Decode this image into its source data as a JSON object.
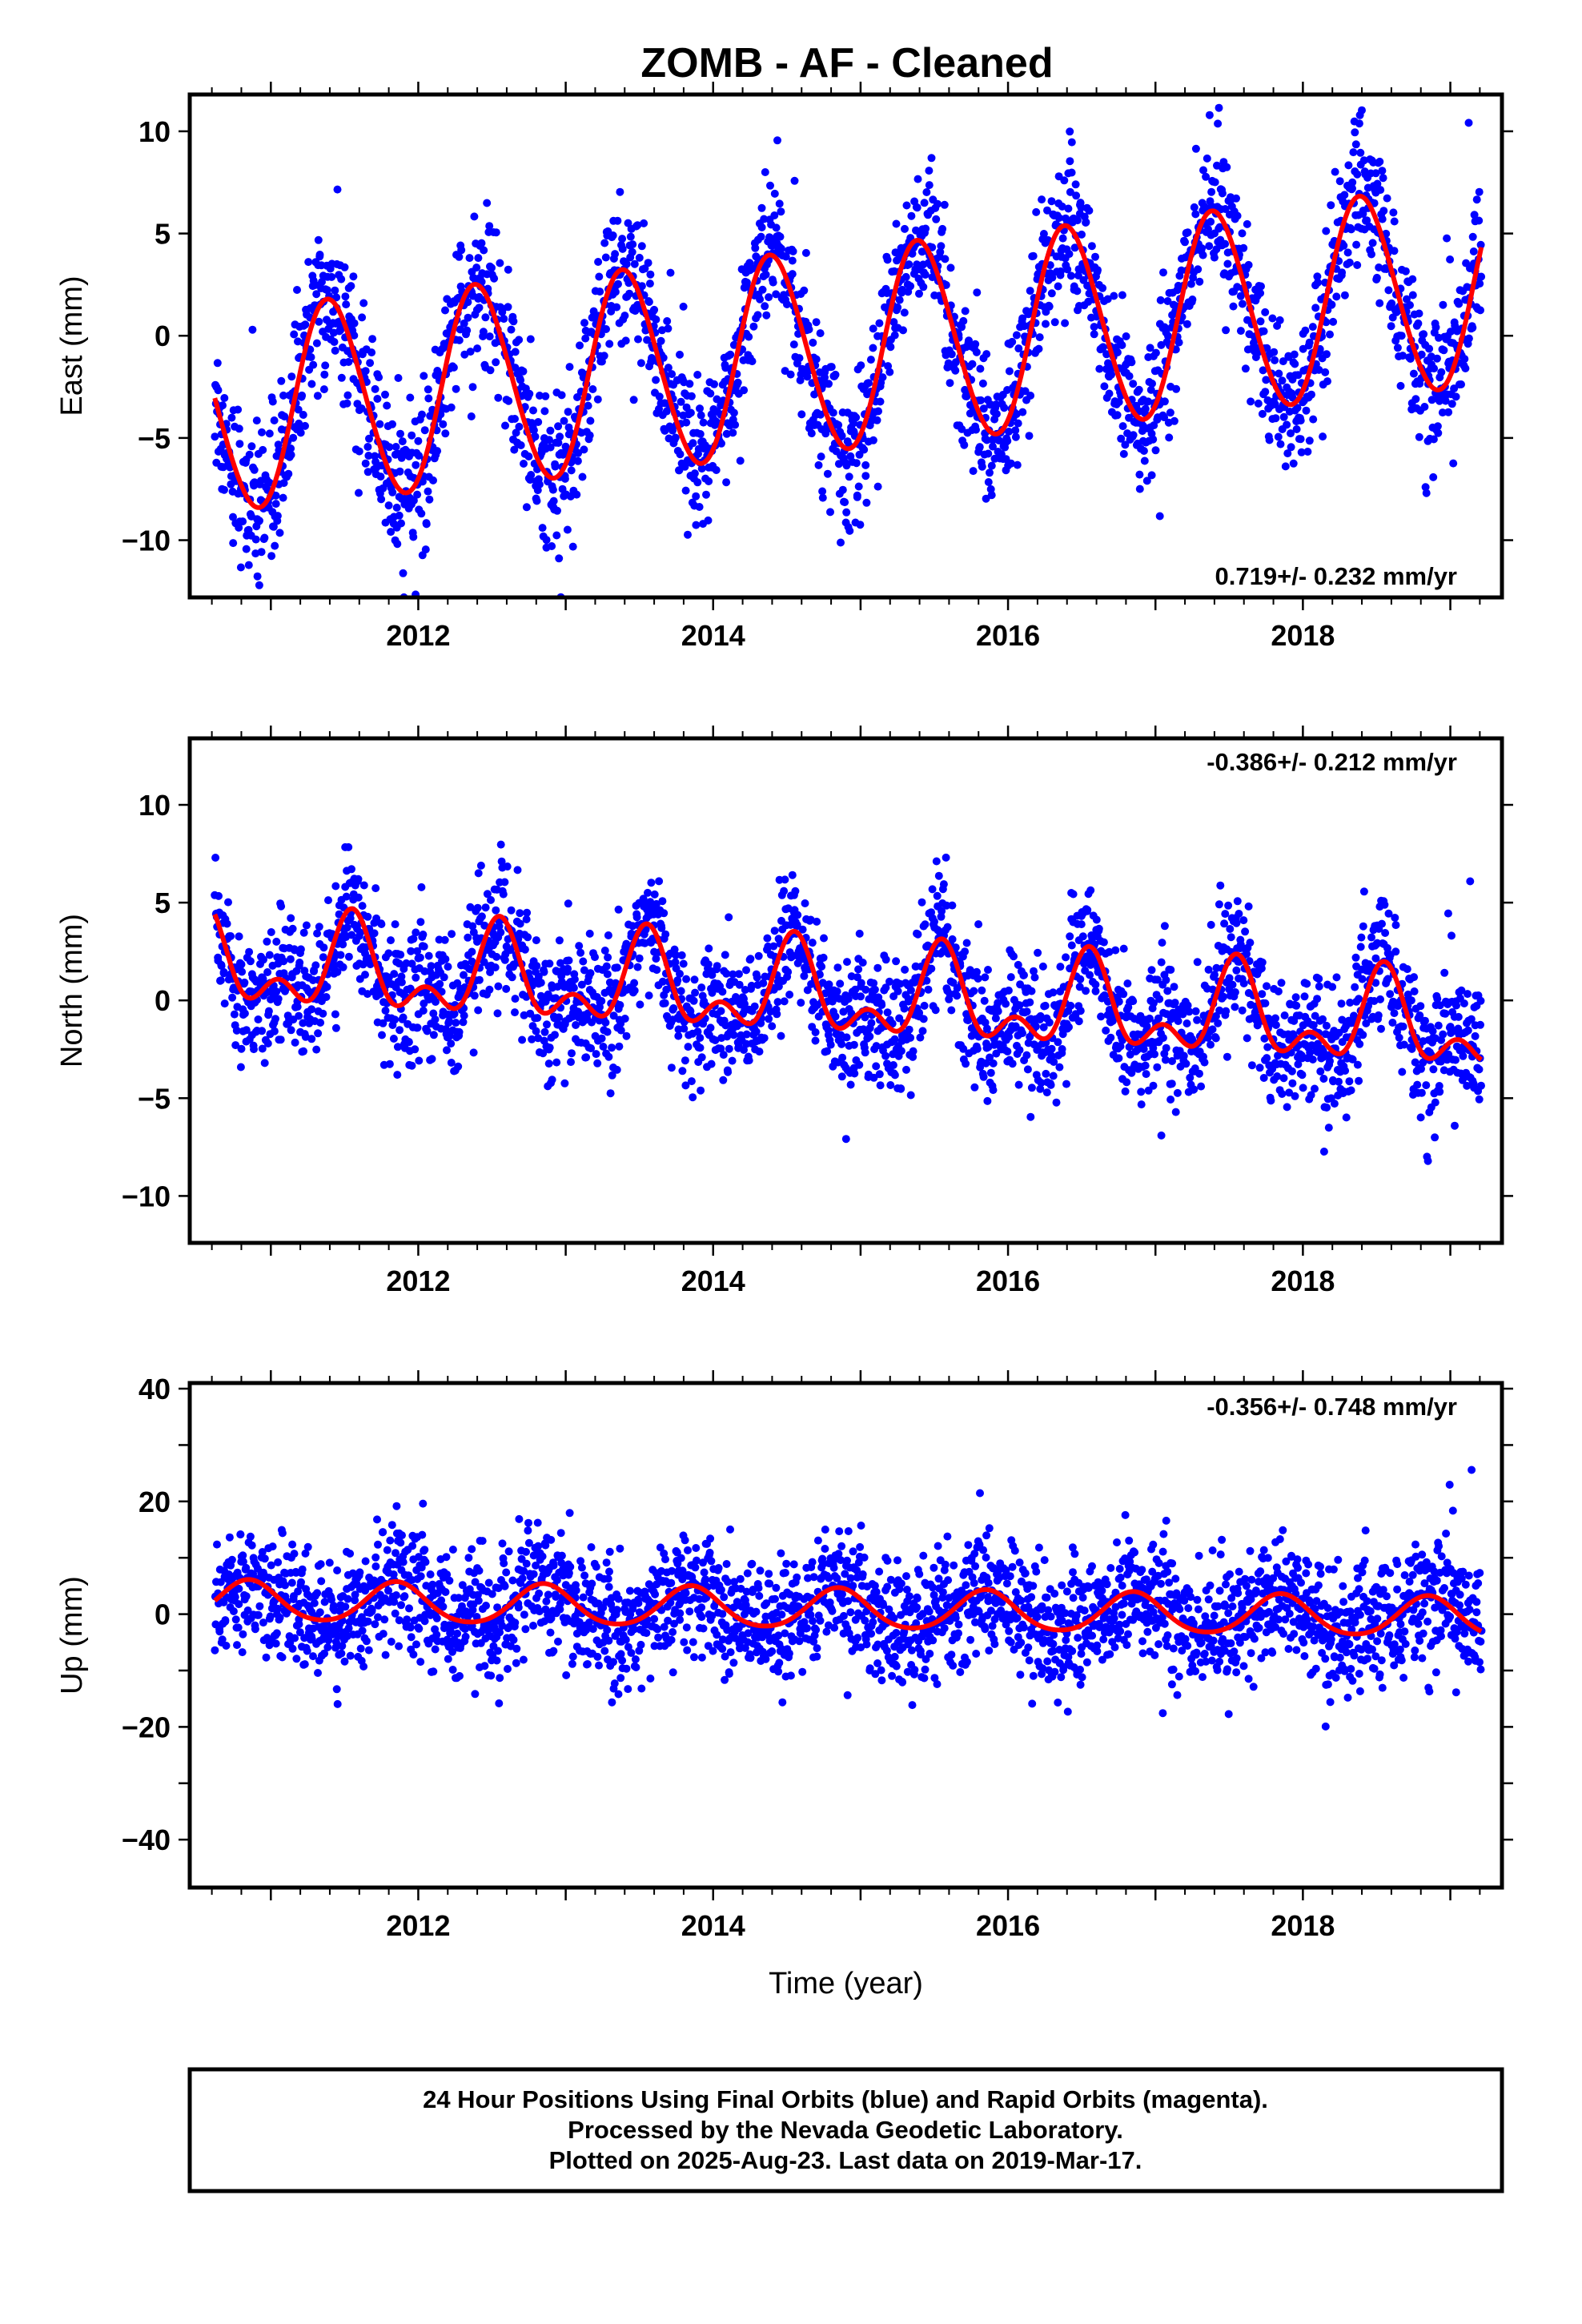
{
  "title": "ZOMB  - AF - Cleaned",
  "chart_data": [
    {
      "type": "scatter",
      "ylabel": "East (mm)",
      "xlabel": "",
      "xlim": [
        2010.45,
        2019.35
      ],
      "ylim": [
        -12.8,
        11.8
      ],
      "x_ticks": [
        2012,
        2014,
        2016,
        2018
      ],
      "y_ticks": [
        -10,
        -5,
        0,
        5,
        10
      ],
      "rate_label": "0.719+/- 0.232 mm/yr",
      "rate_position": "bottom-right",
      "series": [
        {
          "color": "#0000ff",
          "model": {
            "start": 2010.62,
            "end": 2019.21,
            "ref": 2014.9,
            "offset": -0.7,
            "trend": 0.719,
            "annual_sin": 0.0,
            "annual_cos": 4.9,
            "annual_phase": 2011.4,
            "semiannual_amp": 0.3,
            "semiannual_phase": 2011.3
          },
          "scatter_sigma": 1.8,
          "samples": 2600
        },
        {
          "color": "#ff0000",
          "model": {
            "start": 2010.62,
            "end": 2019.21,
            "ref": 2014.9,
            "offset": -0.7,
            "trend": 0.719,
            "annual_sin": 0.0,
            "annual_cos": 4.9,
            "annual_phase": 2011.4,
            "semiannual_amp": 0.3,
            "semiannual_phase": 2011.3
          }
        }
      ]
    },
    {
      "type": "scatter",
      "ylabel": "North (mm)",
      "xlabel": "",
      "xlim": [
        2010.45,
        2019.35
      ],
      "ylim": [
        -12.4,
        13.4
      ],
      "x_ticks": [
        2012,
        2014,
        2016,
        2018
      ],
      "y_ticks": [
        -10,
        -5,
        0,
        5,
        10
      ],
      "rate_label": "-0.386+/- 0.212 mm/yr",
      "rate_position": "top-right",
      "series": [
        {
          "color": "#0000ff",
          "model": {
            "start": 2010.62,
            "end": 2019.21,
            "ref": 2014.9,
            "offset": 0.2,
            "trend": -0.386,
            "annual_sin": 0.0,
            "annual_cos": 1.9,
            "annual_phase": 2011.55,
            "semiannual_amp": 1.3,
            "semiannual_phase": 2011.55
          },
          "scatter_sigma": 1.7,
          "samples": 2600
        },
        {
          "color": "#ff0000",
          "model": {
            "start": 2010.62,
            "end": 2019.21,
            "ref": 2014.9,
            "offset": 0.2,
            "trend": -0.386,
            "annual_sin": 0.0,
            "annual_cos": 1.9,
            "annual_phase": 2011.55,
            "semiannual_amp": 1.3,
            "semiannual_phase": 2011.55
          }
        }
      ]
    },
    {
      "type": "scatter",
      "ylabel": "Up (mm)",
      "xlabel": "Time (year)",
      "xlim": [
        2010.45,
        2019.35
      ],
      "ylim": [
        -48.5,
        41
      ],
      "x_ticks": [
        2012,
        2014,
        2016,
        2018
      ],
      "y_ticks": [
        -40,
        -20,
        0,
        20,
        40
      ],
      "rate_label": "-0.356+/- 0.748 mm/yr",
      "rate_position": "top-right",
      "series": [
        {
          "color": "#0000ff",
          "model": {
            "start": 2010.62,
            "end": 2019.21,
            "ref": 2014.9,
            "offset": 0.8,
            "trend": -0.356,
            "annual_sin": 0.0,
            "annual_cos": 3.5,
            "annual_phase": 2010.85,
            "semiannual_amp": 0.4,
            "semiannual_phase": 2010.85
          },
          "scatter_sigma": 5.5,
          "samples": 2600
        },
        {
          "color": "#ff0000",
          "model": {
            "start": 2010.62,
            "end": 2019.21,
            "ref": 2014.9,
            "offset": 0.8,
            "trend": -0.356,
            "annual_sin": 0.0,
            "annual_cos": 3.5,
            "annual_phase": 2010.85,
            "semiannual_amp": 0.4,
            "semiannual_phase": 2010.85
          }
        }
      ]
    }
  ],
  "footer": {
    "line1": "24 Hour Positions Using Final Orbits (blue) and Rapid Orbits (magenta).",
    "line2": "Processed by the Nevada Geodetic Laboratory.",
    "line3": "Plotted on 2025-Aug-23. Last data on 2019-Mar-17."
  }
}
